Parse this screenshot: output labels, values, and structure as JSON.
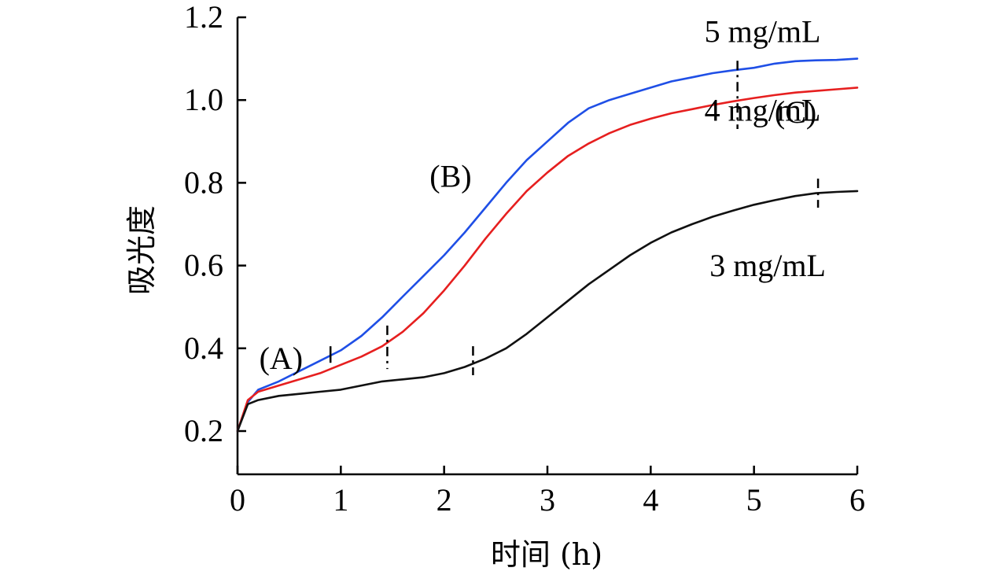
{
  "chart_data": {
    "type": "line",
    "title": "",
    "xlabel": "时间 (h)",
    "ylabel": "吸光度",
    "xlim": [
      0,
      6
    ],
    "ylim": [
      0.2,
      1.2
    ],
    "x_ticks": [
      "0",
      "1",
      "2",
      "3",
      "4",
      "5",
      "6"
    ],
    "y_ticks": [
      "0.2",
      "0.4",
      "0.6",
      "0.8",
      "1.0",
      "1.2"
    ],
    "y_tick_values": [
      0.2,
      0.4,
      0.6,
      0.8,
      1.0,
      1.2
    ],
    "grid": false,
    "series": [
      {
        "name": "5 mg/mL",
        "color": "#1f4fe6",
        "x": [
          0,
          0.1,
          0.2,
          0.4,
          0.6,
          0.8,
          1.0,
          1.2,
          1.4,
          1.6,
          1.8,
          2.0,
          2.2,
          2.4,
          2.6,
          2.8,
          3.0,
          3.2,
          3.4,
          3.6,
          3.8,
          4.0,
          4.2,
          4.4,
          4.6,
          4.8,
          5.0,
          5.2,
          5.4,
          5.6,
          5.8,
          6.0
        ],
        "y": [
          0.2,
          0.27,
          0.3,
          0.32,
          0.345,
          0.37,
          0.395,
          0.43,
          0.475,
          0.525,
          0.575,
          0.625,
          0.68,
          0.74,
          0.8,
          0.855,
          0.9,
          0.945,
          0.98,
          1.0,
          1.015,
          1.03,
          1.045,
          1.055,
          1.065,
          1.072,
          1.078,
          1.088,
          1.094,
          1.096,
          1.097,
          1.1
        ]
      },
      {
        "name": "4 mg/mL",
        "color": "#e61f1f",
        "x": [
          0,
          0.1,
          0.2,
          0.4,
          0.6,
          0.8,
          1.0,
          1.2,
          1.4,
          1.6,
          1.8,
          2.0,
          2.2,
          2.4,
          2.6,
          2.8,
          3.0,
          3.2,
          3.4,
          3.6,
          3.8,
          4.0,
          4.2,
          4.4,
          4.6,
          4.8,
          5.0,
          5.2,
          5.4,
          5.6,
          5.8,
          6.0
        ],
        "y": [
          0.2,
          0.275,
          0.295,
          0.31,
          0.325,
          0.34,
          0.36,
          0.38,
          0.405,
          0.44,
          0.485,
          0.54,
          0.6,
          0.665,
          0.725,
          0.78,
          0.825,
          0.865,
          0.895,
          0.92,
          0.94,
          0.955,
          0.968,
          0.978,
          0.988,
          0.997,
          1.005,
          1.012,
          1.018,
          1.022,
          1.026,
          1.03
        ]
      },
      {
        "name": "3 mg/mL",
        "color": "#111111",
        "x": [
          0,
          0.1,
          0.2,
          0.4,
          0.6,
          0.8,
          1.0,
          1.2,
          1.4,
          1.6,
          1.8,
          2.0,
          2.2,
          2.4,
          2.6,
          2.8,
          3.0,
          3.2,
          3.4,
          3.6,
          3.8,
          4.0,
          4.2,
          4.4,
          4.6,
          4.8,
          5.0,
          5.2,
          5.4,
          5.6,
          5.8,
          6.0
        ],
        "y": [
          0.2,
          0.265,
          0.275,
          0.285,
          0.29,
          0.295,
          0.3,
          0.31,
          0.32,
          0.325,
          0.33,
          0.34,
          0.355,
          0.375,
          0.4,
          0.435,
          0.475,
          0.515,
          0.555,
          0.59,
          0.625,
          0.655,
          0.68,
          0.7,
          0.718,
          0.733,
          0.747,
          0.758,
          0.768,
          0.775,
          0.778,
          0.78
        ]
      }
    ],
    "annotations": [
      {
        "text": "5 mg/mL",
        "x": 4.52,
        "y": 1.14
      },
      {
        "text": "4 mg/mL",
        "x": 4.52,
        "y": 0.95
      },
      {
        "text": "3 mg/mL",
        "x": 4.57,
        "y": 0.575
      },
      {
        "text": "(A)",
        "x": 0.21,
        "y": 0.35
      },
      {
        "text": "(B)",
        "x": 1.86,
        "y": 0.79
      },
      {
        "text": "(C)",
        "x": 5.2,
        "y": 0.945
      }
    ],
    "phase_markers": [
      {
        "x": 0.9,
        "y1": 0.405,
        "y2": 0.365,
        "style": "solid"
      },
      {
        "x": 1.45,
        "y1": 0.455,
        "y2": 0.35,
        "style": "dashed"
      },
      {
        "x": 2.28,
        "y1": 0.405,
        "y2": 0.335,
        "style": "dashed"
      },
      {
        "x": 4.84,
        "y1": 1.095,
        "y2": 0.93,
        "style": "dashed"
      },
      {
        "x": 5.62,
        "y1": 0.81,
        "y2": 0.74,
        "style": "dashed"
      }
    ]
  }
}
